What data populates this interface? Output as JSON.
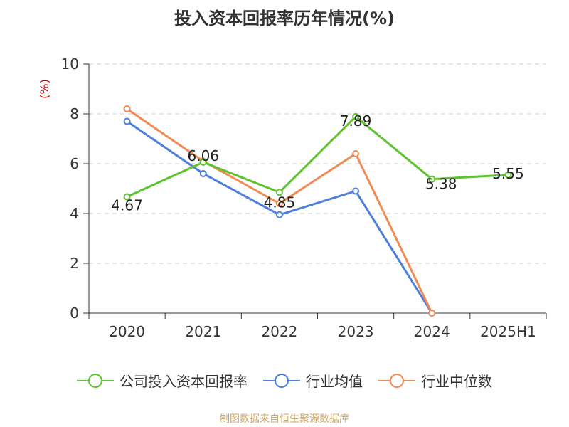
{
  "title": "投入资本回报率历年情况(%)",
  "source": "制图数据来自恒生聚源数据库",
  "chart_data": {
    "type": "line",
    "categories": [
      "2020",
      "2021",
      "2022",
      "2023",
      "2024",
      "2025H1"
    ],
    "ylabel": "(%)",
    "ylim": [
      0,
      10
    ],
    "yticks": [
      0,
      2,
      4,
      6,
      8,
      10
    ],
    "grid": true,
    "legend_position": "bottom",
    "series": [
      {
        "name": "公司投入资本回报率",
        "color": "#5cc22d",
        "values": [
          4.67,
          6.06,
          4.85,
          7.89,
          5.38,
          5.55
        ],
        "labels": [
          "4.67",
          "6.06",
          "4.85",
          "7.89",
          "5.38",
          "5.55"
        ]
      },
      {
        "name": "行业均值",
        "color": "#4e7fdc",
        "values": [
          7.7,
          5.6,
          3.95,
          4.9,
          0.0,
          null
        ]
      },
      {
        "name": "行业中位数",
        "color": "#f28a54",
        "values": [
          8.2,
          6.1,
          4.4,
          6.4,
          0.0,
          null
        ]
      }
    ]
  }
}
